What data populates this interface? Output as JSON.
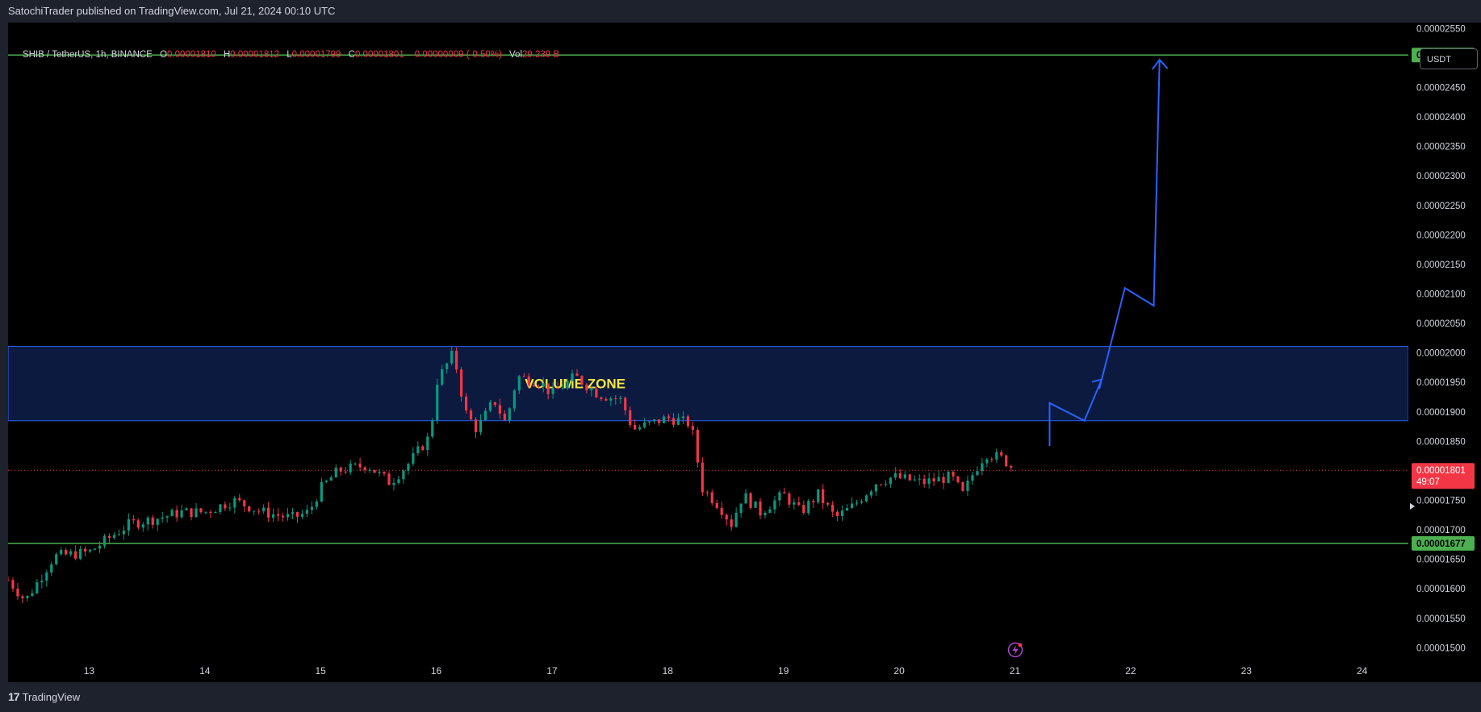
{
  "header": {
    "published": "SatochiTrader published on TradingView.com, Jul 21, 2024 00:10 UTC"
  },
  "symbol": {
    "name": "SHIB / TetherUS, 1h, BINANCE",
    "o_label": "O",
    "o": "0.00001810",
    "h_label": "H",
    "h": "0.00001812",
    "l_label": "L",
    "l": "0.00001799",
    "c_label": "C",
    "c": "0.00001801",
    "change": "-0.00000009 (-0.50%)",
    "vol_label": "Vol",
    "vol": "29.239 B"
  },
  "currency_button": "USDT",
  "footer": {
    "brand": "TradingView",
    "logo_glyph": "17"
  },
  "colors": {
    "up": "#089981",
    "down": "#f23645",
    "level": "#4caf50",
    "zone_fill": "#0b1a3e",
    "zone_border": "#2962ff",
    "arrow": "#2962ff",
    "zone_text": "#f5e642"
  },
  "chart_data": {
    "type": "candlestick",
    "title": "SHIB / TetherUS, 1h, BINANCE",
    "ylim": [
      1.48e-05,
      2.56e-05
    ],
    "price_ticks": [
      "0.00002550",
      "0.00002450",
      "0.00002400",
      "0.00002350",
      "0.00002300",
      "0.00002250",
      "0.00002200",
      "0.00002150",
      "0.00002100",
      "0.00002050",
      "0.00002000",
      "0.00001950",
      "0.00001900",
      "0.00001850",
      "0.00001750",
      "0.00001700",
      "0.00001650",
      "0.00001600",
      "0.00001550",
      "0.00001500"
    ],
    "date_ticks": [
      "13",
      "14",
      "15",
      "16",
      "17",
      "18",
      "19",
      "20",
      "21",
      "22",
      "23",
      "24"
    ],
    "x_range_days": [
      12.3,
      24.4
    ],
    "levels": [
      {
        "price": 2.505e-05,
        "label": "0.00002505",
        "color": "#4caf50"
      },
      {
        "price": 1.677e-05,
        "label": "0.00001677",
        "color": "#4caf50"
      }
    ],
    "current_price": {
      "price": 1.801e-05,
      "label": "0.00001801",
      "countdown": "49:07",
      "color": "#f23645"
    },
    "zone": {
      "top": 2.011e-05,
      "bottom": 1.885e-05,
      "label": "VOLUME ZONE",
      "x_start": 12.3,
      "x_end": 24.4
    },
    "projection": [
      [
        21.3,
        1.842e-05
      ],
      [
        21.3,
        1.915e-05
      ],
      [
        21.6,
        1.885e-05
      ],
      [
        21.75,
        1.955e-05
      ],
      [
        21.8,
        1.993e-05
      ],
      [
        21.95,
        2.11e-05
      ],
      [
        22.2,
        2.08e-05
      ],
      [
        22.25,
        2.497e-05
      ]
    ],
    "keypoints": [
      [
        12.3,
        1.615e-05
      ],
      [
        12.45,
        1.58e-05
      ],
      [
        12.7,
        1.655e-05
      ],
      [
        13.0,
        1.662e-05
      ],
      [
        13.2,
        1.69e-05
      ],
      [
        13.35,
        1.71e-05
      ],
      [
        13.6,
        1.72e-05
      ],
      [
        13.8,
        1.73e-05
      ],
      [
        14.0,
        1.73e-05
      ],
      [
        14.25,
        1.75e-05
      ],
      [
        14.5,
        1.73e-05
      ],
      [
        14.75,
        1.72e-05
      ],
      [
        14.9,
        1.73e-05
      ],
      [
        15.0,
        1.77e-05
      ],
      [
        15.15,
        1.8e-05
      ],
      [
        15.4,
        1.81e-05
      ],
      [
        15.6,
        1.78e-05
      ],
      [
        15.75,
        1.81e-05
      ],
      [
        15.95,
        1.86e-05
      ],
      [
        16.0,
        1.95e-05
      ],
      [
        16.15,
        2e-05
      ],
      [
        16.25,
        1.9e-05
      ],
      [
        16.35,
        1.87e-05
      ],
      [
        16.5,
        1.92e-05
      ],
      [
        16.6,
        1.88e-05
      ],
      [
        16.7,
        1.96e-05
      ],
      [
        16.9,
        1.95e-05
      ],
      [
        17.0,
        1.93e-05
      ],
      [
        17.2,
        1.96e-05
      ],
      [
        17.4,
        1.93e-05
      ],
      [
        17.6,
        1.92e-05
      ],
      [
        17.7,
        1.87e-05
      ],
      [
        18.0,
        1.89e-05
      ],
      [
        18.2,
        1.88e-05
      ],
      [
        18.3,
        1.77e-05
      ],
      [
        18.45,
        1.74e-05
      ],
      [
        18.55,
        1.71e-05
      ],
      [
        18.65,
        1.76e-05
      ],
      [
        18.8,
        1.73e-05
      ],
      [
        19.0,
        1.76e-05
      ],
      [
        19.15,
        1.73e-05
      ],
      [
        19.3,
        1.76e-05
      ],
      [
        19.45,
        1.72e-05
      ],
      [
        19.6,
        1.74e-05
      ],
      [
        19.8,
        1.78e-05
      ],
      [
        19.95,
        1.79e-05
      ],
      [
        20.2,
        1.78e-05
      ],
      [
        20.45,
        1.79e-05
      ],
      [
        20.55,
        1.76e-05
      ],
      [
        20.65,
        1.8e-05
      ],
      [
        20.75,
        1.83e-05
      ],
      [
        20.9,
        1.82e-05
      ],
      [
        21.0,
        1.801e-05
      ]
    ]
  }
}
